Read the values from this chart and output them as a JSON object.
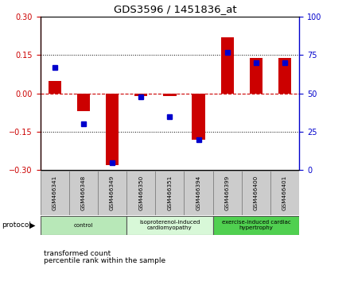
{
  "title": "GDS3596 / 1451836_at",
  "samples": [
    "GSM466341",
    "GSM466348",
    "GSM466349",
    "GSM466350",
    "GSM466351",
    "GSM466394",
    "GSM466399",
    "GSM466400",
    "GSM466401"
  ],
  "red_values": [
    0.05,
    -0.07,
    -0.28,
    -0.01,
    -0.01,
    -0.18,
    0.22,
    0.14,
    0.14
  ],
  "blue_values_pct": [
    67,
    30,
    5,
    48,
    35,
    20,
    77,
    70,
    70
  ],
  "ylim_left": [
    -0.3,
    0.3
  ],
  "ylim_right": [
    0,
    100
  ],
  "yticks_left": [
    -0.3,
    -0.15,
    0.0,
    0.15,
    0.3
  ],
  "yticks_right": [
    0,
    25,
    50,
    75,
    100
  ],
  "protocol_groups": [
    {
      "label": "control",
      "start": 0,
      "end": 2,
      "color": "#b8e8b8"
    },
    {
      "label": "isoproterenol-induced\ncardiomyopathy",
      "start": 3,
      "end": 5,
      "color": "#d8f8d8"
    },
    {
      "label": "exercise-induced cardiac\nhypertrophy",
      "start": 6,
      "end": 8,
      "color": "#50d050"
    }
  ],
  "bar_width": 0.45,
  "red_color": "#cc0000",
  "blue_color": "#0000cc",
  "bg_color": "#ffffff",
  "plot_bg": "#ffffff",
  "grid_color": "#000000",
  "sample_box_color": "#cccccc",
  "legend_items": [
    {
      "label": "transformed count",
      "color": "#cc0000"
    },
    {
      "label": "percentile rank within the sample",
      "color": "#0000cc"
    }
  ]
}
